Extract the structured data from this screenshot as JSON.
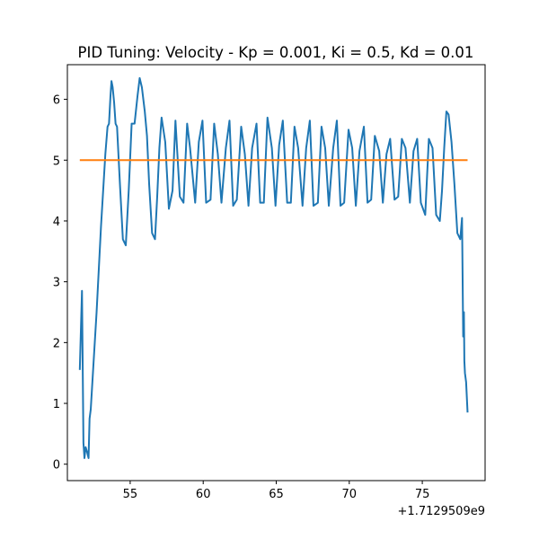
{
  "chart_data": {
    "type": "line",
    "title": "PID Tuning: Velocity - Kp = 0.001, Ki = 0.5, Kd = 0.01",
    "xlabel": "",
    "ylabel": "",
    "x_offset_label": "+1.7129509e9",
    "xlim": [
      50.7,
      79.3
    ],
    "ylim": [
      -0.27,
      6.57
    ],
    "x_ticks": [
      55,
      60,
      65,
      70,
      75
    ],
    "x_tick_labels": [
      "55",
      "60",
      "65",
      "70",
      "75"
    ],
    "y_ticks": [
      0,
      1,
      2,
      3,
      4,
      5,
      6
    ],
    "y_tick_labels": [
      "0",
      "1",
      "2",
      "3",
      "4",
      "5",
      "6"
    ],
    "grid": false,
    "legend": null,
    "series": [
      {
        "color": "#1f77b4",
        "x": [
          51.55,
          51.7,
          51.8,
          51.87,
          51.95,
          52.05,
          52.15,
          52.22,
          52.3,
          52.45,
          52.7,
          53.0,
          53.3,
          53.45,
          53.55,
          53.65,
          53.72,
          53.8,
          53.9,
          54.0,
          54.1,
          54.3,
          54.5,
          54.7,
          54.9,
          55.1,
          55.3,
          55.5,
          55.65,
          55.8,
          56.0,
          56.15,
          56.3,
          56.5,
          56.7,
          56.85,
          57.0,
          57.15,
          57.4,
          57.65,
          57.9,
          58.1,
          58.4,
          58.65,
          58.9,
          59.1,
          59.45,
          59.7,
          59.95,
          60.2,
          60.5,
          60.75,
          61.0,
          61.25,
          61.55,
          61.8,
          62.05,
          62.3,
          62.6,
          62.85,
          63.1,
          63.35,
          63.65,
          63.9,
          64.15,
          64.4,
          64.7,
          64.95,
          65.2,
          65.45,
          65.75,
          66.0,
          66.25,
          66.5,
          66.8,
          67.05,
          67.3,
          67.55,
          67.85,
          68.1,
          68.35,
          68.6,
          68.9,
          69.15,
          69.4,
          69.65,
          69.95,
          70.2,
          70.45,
          70.7,
          71.0,
          71.25,
          71.5,
          71.75,
          72.05,
          72.3,
          72.55,
          72.8,
          73.1,
          73.35,
          73.6,
          73.85,
          74.15,
          74.4,
          74.65,
          74.9,
          75.2,
          75.45,
          75.7,
          75.95,
          76.2,
          76.35,
          76.5,
          76.65,
          76.8,
          77.0,
          77.2,
          77.4,
          77.6,
          77.72,
          77.8,
          77.85,
          77.88,
          77.92,
          78.0,
          78.1
        ],
        "y": [
          1.55,
          2.85,
          0.35,
          0.1,
          0.28,
          0.2,
          0.1,
          0.75,
          0.9,
          1.5,
          2.5,
          3.9,
          5.1,
          5.55,
          5.6,
          6.05,
          6.3,
          6.2,
          5.95,
          5.6,
          5.55,
          4.6,
          3.7,
          3.6,
          4.5,
          5.6,
          5.6,
          6.05,
          6.35,
          6.2,
          5.8,
          5.4,
          4.6,
          3.8,
          3.7,
          4.4,
          5.2,
          5.7,
          5.3,
          4.2,
          4.5,
          5.65,
          4.4,
          4.3,
          5.6,
          5.2,
          4.3,
          5.3,
          5.65,
          4.3,
          4.35,
          5.6,
          5.1,
          4.3,
          5.2,
          5.65,
          4.25,
          4.35,
          5.55,
          5.1,
          4.25,
          5.2,
          5.6,
          4.3,
          4.3,
          5.7,
          5.2,
          4.25,
          5.25,
          5.65,
          4.3,
          4.3,
          5.55,
          5.2,
          4.25,
          5.2,
          5.65,
          4.25,
          4.3,
          5.55,
          5.2,
          4.25,
          5.2,
          5.65,
          4.25,
          4.3,
          5.5,
          5.2,
          4.25,
          5.15,
          5.55,
          4.3,
          4.35,
          5.4,
          5.15,
          4.3,
          5.1,
          5.35,
          4.35,
          4.4,
          5.35,
          5.2,
          4.3,
          5.15,
          5.35,
          4.3,
          4.1,
          5.35,
          5.2,
          4.1,
          4.0,
          4.5,
          5.2,
          5.8,
          5.75,
          5.3,
          4.6,
          3.8,
          3.7,
          4.05,
          2.1,
          2.5,
          1.7,
          1.5,
          1.35,
          0.85
        ]
      },
      {
        "color": "#ff7f0e",
        "x": [
          51.55,
          78.1
        ],
        "y": [
          5.0,
          5.0
        ]
      }
    ]
  }
}
